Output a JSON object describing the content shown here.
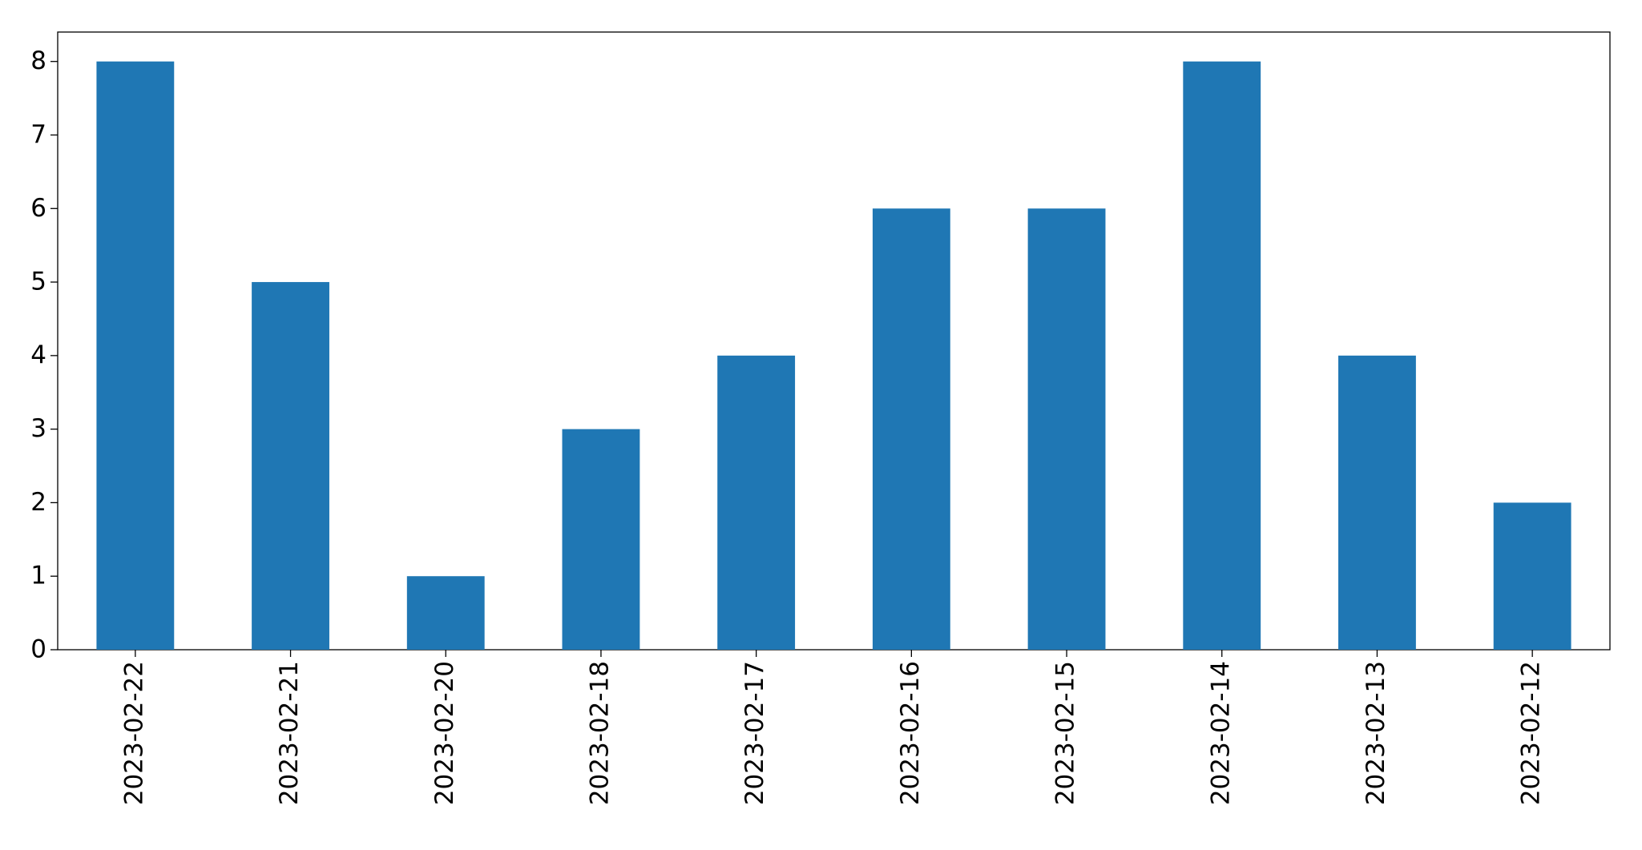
{
  "chart_data": {
    "type": "bar",
    "categories": [
      "2023-02-22",
      "2023-02-21",
      "2023-02-20",
      "2023-02-18",
      "2023-02-17",
      "2023-02-16",
      "2023-02-15",
      "2023-02-14",
      "2023-02-13",
      "2023-02-12"
    ],
    "values": [
      8,
      5,
      1,
      3,
      4,
      6,
      6,
      8,
      4,
      2
    ],
    "color": "#1f77b4",
    "ylim": [
      0,
      8.4
    ],
    "yticks": [
      0,
      1,
      2,
      3,
      4,
      5,
      6,
      7,
      8
    ],
    "grid": false
  }
}
